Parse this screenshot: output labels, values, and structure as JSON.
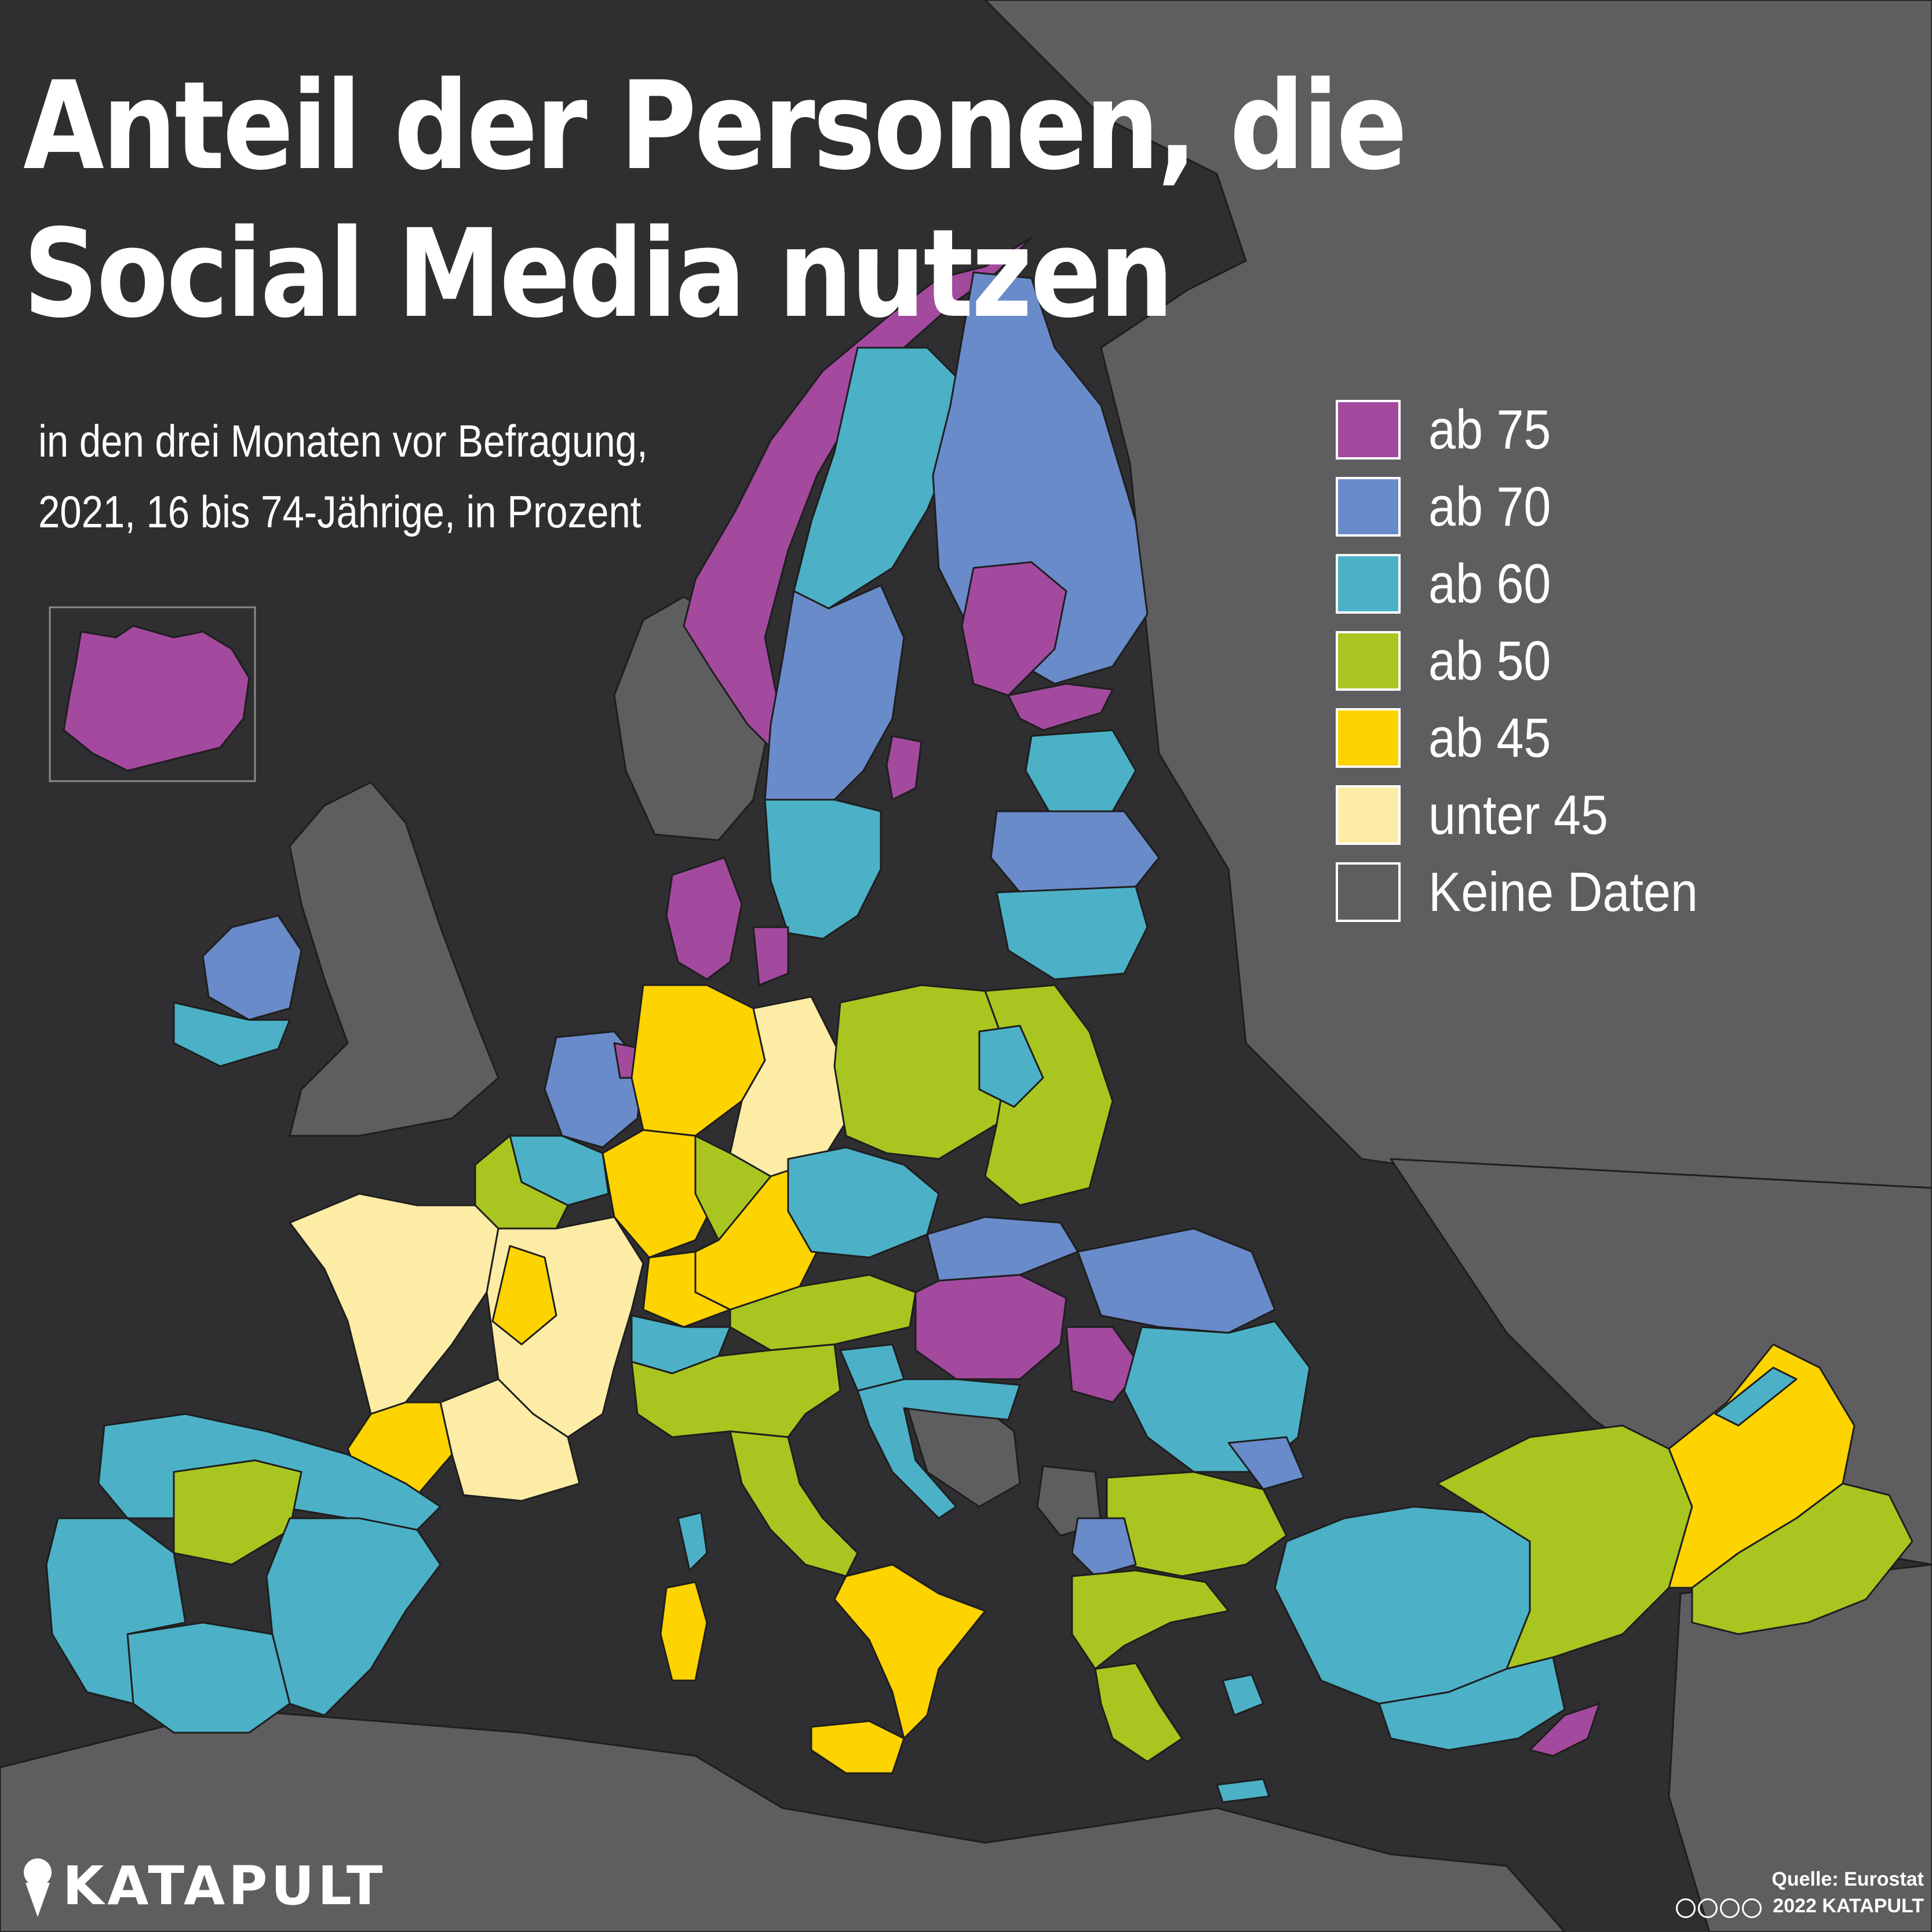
{
  "title": "Anteil der Personen, die Social Media nutzen",
  "subtitle_line1": "in den drei Monaten vor Befragung,",
  "subtitle_line2": "2021, 16 bis 74-Jährige, in Prozent",
  "legend": [
    {
      "label": "ab 75",
      "color": "#a34a9e"
    },
    {
      "label": "ab 70",
      "color": "#6a8bc9"
    },
    {
      "label": "ab 60",
      "color": "#4cb1c6"
    },
    {
      "label": "ab 50",
      "color": "#a9c520"
    },
    {
      "label": "ab 45",
      "color": "#fdd300"
    },
    {
      "label": "unter 45",
      "color": "#fdeca6"
    },
    {
      "label": "Keine Daten",
      "color": "#5e5e60"
    }
  ],
  "logo": "KATAPULT",
  "source_line1": "Quelle: Eurostat",
  "source_line2": "2022 KATAPULT",
  "colors": {
    "background": "#2f2f31",
    "no_data": "#5e5e60",
    "border": "#1e1e1e"
  }
}
